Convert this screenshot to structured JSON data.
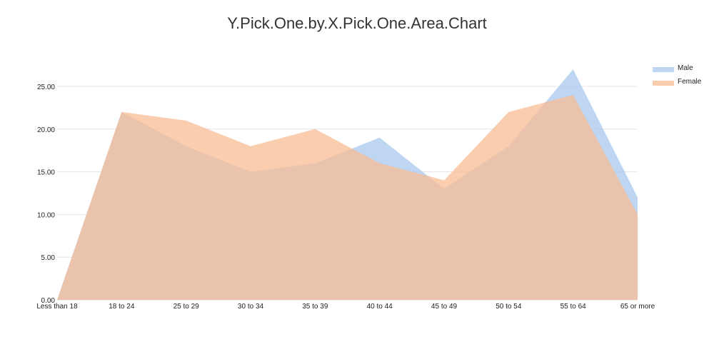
{
  "chart_data": {
    "type": "area",
    "title": "Y.Pick.One.by.X.Pick.One.Area.Chart",
    "xlabel": "",
    "ylabel": "",
    "categories": [
      "Less than 18",
      "18 to 24",
      "25 to 29",
      "30 to 34",
      "35 to 39",
      "40 to 44",
      "45 to 49",
      "50 to 54",
      "55 to 64",
      "65 or more"
    ],
    "ylim": [
      0,
      25
    ],
    "yticks": [
      0,
      5,
      10,
      15,
      20,
      25
    ],
    "ytick_labels": [
      "0.00",
      "5.00",
      "10.00",
      "15.00",
      "20.00",
      "25.00"
    ],
    "grid": true,
    "legend_position": "top-right",
    "series": [
      {
        "name": "Male",
        "color": "#a8c8ec",
        "values": [
          0,
          22,
          18,
          15,
          16,
          19,
          13,
          18,
          27,
          12
        ]
      },
      {
        "name": "Female",
        "color": "#f8bc94",
        "values": [
          0,
          22,
          21,
          18,
          20,
          16,
          14,
          22,
          24,
          10
        ]
      }
    ]
  }
}
